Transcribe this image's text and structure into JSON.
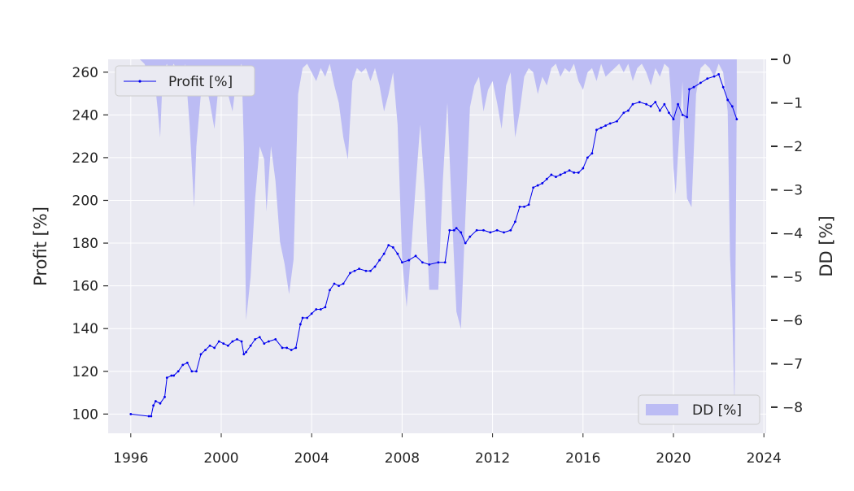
{
  "chart_data": {
    "type": "line",
    "title": "",
    "xlabel": "",
    "ylabel": "Profit [%]",
    "y2label": "DD [%]",
    "xlim": [
      1995.0,
      2024.1
    ],
    "ylim": [
      91,
      266
    ],
    "y2lim": [
      -8.6,
      0
    ],
    "grid": true,
    "x_ticks": [
      1996,
      2000,
      2004,
      2008,
      2012,
      2016,
      2020,
      2024
    ],
    "x_tick_labels": [
      "1996",
      "2000",
      "2004",
      "2008",
      "2012",
      "2016",
      "2020",
      "2024"
    ],
    "y_ticks": [
      100,
      120,
      140,
      160,
      180,
      200,
      220,
      240,
      260
    ],
    "y_tick_labels": [
      "100",
      "120",
      "140",
      "160",
      "180",
      "200",
      "220",
      "240",
      "260"
    ],
    "y2_ticks": [
      0,
      -1,
      -2,
      -3,
      -4,
      -5,
      -6,
      -7,
      -8
    ],
    "y2_tick_labels": [
      "0",
      "−1",
      "−2",
      "−3",
      "−4",
      "−5",
      "−6",
      "−7",
      "−8"
    ],
    "legend_profit_position": "upper-left",
    "legend_dd_position": "lower-right",
    "series": [
      {
        "name": "Profit [%]",
        "axis": "left",
        "color": "#0000ee",
        "x": [
          1996.0,
          1996.8,
          1996.9,
          1997.0,
          1997.1,
          1997.3,
          1997.5,
          1997.6,
          1997.8,
          1997.9,
          1998.1,
          1998.3,
          1998.5,
          1998.7,
          1998.9,
          1999.1,
          1999.3,
          1999.5,
          1999.7,
          1999.9,
          2000.1,
          2000.3,
          2000.5,
          2000.7,
          2000.9,
          2001.0,
          2001.1,
          2001.3,
          2001.5,
          2001.7,
          2001.9,
          2002.1,
          2002.4,
          2002.7,
          2002.9,
          2003.1,
          2003.3,
          2003.5,
          2003.6,
          2003.8,
          2004.0,
          2004.2,
          2004.4,
          2004.6,
          2004.8,
          2005.0,
          2005.2,
          2005.4,
          2005.7,
          2005.9,
          2006.1,
          2006.4,
          2006.6,
          2006.8,
          2007.0,
          2007.2,
          2007.4,
          2007.6,
          2007.8,
          2008.0,
          2008.3,
          2008.6,
          2008.9,
          2009.2,
          2009.6,
          2009.9,
          2010.1,
          2010.3,
          2010.4,
          2010.6,
          2010.8,
          2011.0,
          2011.3,
          2011.6,
          2011.9,
          2012.2,
          2012.5,
          2012.8,
          2013.0,
          2013.2,
          2013.4,
          2013.6,
          2013.8,
          2014.0,
          2014.2,
          2014.4,
          2014.6,
          2014.8,
          2015.0,
          2015.2,
          2015.4,
          2015.6,
          2015.8,
          2016.0,
          2016.2,
          2016.4,
          2016.6,
          2016.8,
          2017.0,
          2017.2,
          2017.5,
          2017.8,
          2018.0,
          2018.2,
          2018.5,
          2018.8,
          2019.0,
          2019.2,
          2019.4,
          2019.6,
          2019.8,
          2020.0,
          2020.2,
          2020.4,
          2020.6,
          2020.7,
          2020.9,
          2021.2,
          2021.5,
          2021.8,
          2022.0,
          2022.2,
          2022.4,
          2022.6,
          2022.8
        ],
        "y": [
          100,
          99,
          99,
          104,
          106,
          105,
          108,
          117,
          118,
          118,
          120,
          123,
          124,
          120,
          120,
          128,
          130,
          132,
          131,
          134,
          133,
          132,
          134,
          135,
          134,
          128,
          129,
          132,
          135,
          136,
          133,
          134,
          135,
          131,
          131,
          130,
          131,
          142,
          145,
          145,
          147,
          149,
          149,
          150,
          158,
          161,
          160,
          161,
          166,
          167,
          168,
          167,
          167,
          169,
          172,
          175,
          179,
          178,
          175,
          171,
          172,
          174,
          171,
          170,
          171,
          171,
          186,
          186,
          187,
          185,
          180,
          183,
          186,
          186,
          185,
          186,
          185,
          186,
          190,
          197,
          197,
          198,
          206,
          207,
          208,
          210,
          212,
          211,
          212,
          213,
          214,
          213,
          213,
          215,
          220,
          222,
          233,
          234,
          235,
          236,
          237,
          241,
          242,
          245,
          246,
          245,
          244,
          246,
          242,
          245,
          241,
          238,
          245,
          240,
          239,
          252,
          253,
          255,
          257,
          258,
          259,
          253,
          247,
          244,
          238
        ]
      },
      {
        "name": "DD [%]",
        "axis": "right",
        "color": "#bcbcf4",
        "type": "area",
        "x": [
          1996.0,
          1996.4,
          1996.6,
          1996.8,
          1996.9,
          1997.0,
          1997.2,
          1997.3,
          1997.4,
          1997.5,
          1997.6,
          1997.7,
          1997.9,
          1998.0,
          1998.2,
          1998.4,
          1998.6,
          1998.8,
          1998.9,
          1999.1,
          1999.3,
          1999.5,
          1999.7,
          1999.9,
          2000.1,
          2000.3,
          2000.5,
          2000.7,
          2000.9,
          2001.0,
          2001.1,
          2001.3,
          2001.5,
          2001.7,
          2001.9,
          2002.0,
          2002.2,
          2002.4,
          2002.6,
          2002.8,
          2003.0,
          2003.2,
          2003.4,
          2003.6,
          2003.8,
          2004.0,
          2004.2,
          2004.4,
          2004.6,
          2004.8,
          2005.0,
          2005.2,
          2005.4,
          2005.6,
          2005.8,
          2006.0,
          2006.2,
          2006.4,
          2006.6,
          2006.8,
          2007.0,
          2007.2,
          2007.4,
          2007.6,
          2007.8,
          2008.0,
          2008.2,
          2008.4,
          2008.6,
          2008.8,
          2009.0,
          2009.2,
          2009.4,
          2009.6,
          2009.8,
          2010.0,
          2010.2,
          2010.4,
          2010.6,
          2010.8,
          2011.0,
          2011.2,
          2011.4,
          2011.6,
          2011.8,
          2012.0,
          2012.2,
          2012.4,
          2012.6,
          2012.8,
          2013.0,
          2013.2,
          2013.4,
          2013.6,
          2013.8,
          2014.0,
          2014.2,
          2014.4,
          2014.6,
          2014.8,
          2015.0,
          2015.2,
          2015.4,
          2015.6,
          2015.8,
          2016.0,
          2016.2,
          2016.4,
          2016.6,
          2016.8,
          2017.0,
          2017.2,
          2017.4,
          2017.6,
          2017.8,
          2018.0,
          2018.2,
          2018.4,
          2018.6,
          2018.8,
          2019.0,
          2019.2,
          2019.4,
          2019.6,
          2019.8,
          2019.9,
          2020.0,
          2020.1,
          2020.2,
          2020.3,
          2020.4,
          2020.5,
          2020.6,
          2020.8,
          2021.0,
          2021.2,
          2021.4,
          2021.6,
          2021.8,
          2022.0,
          2022.2,
          2022.4,
          2022.5,
          2022.6,
          2022.7,
          2022.8
        ],
        "y": [
          0,
          0,
          -0.1,
          -0.3,
          -0.8,
          -0.2,
          -1.2,
          -1.8,
          -0.5,
          -0.2,
          -0.1,
          -0.3,
          -0.1,
          -0.2,
          -0.6,
          -0.1,
          -1.5,
          -3.4,
          -2.0,
          -0.8,
          -0.5,
          -1.0,
          -1.6,
          -0.5,
          -0.2,
          -0.8,
          -1.2,
          -0.3,
          -0.1,
          -2.0,
          -6.0,
          -5.0,
          -3.2,
          -2.0,
          -2.3,
          -3.5,
          -2.0,
          -2.8,
          -4.2,
          -4.7,
          -5.4,
          -4.6,
          -0.8,
          -0.2,
          -0.1,
          -0.3,
          -0.5,
          -0.2,
          -0.4,
          -0.1,
          -0.6,
          -1.0,
          -1.8,
          -2.3,
          -0.5,
          -0.2,
          -0.3,
          -0.2,
          -0.5,
          -0.2,
          -0.6,
          -1.2,
          -0.8,
          -0.3,
          -1.5,
          -4.6,
          -5.7,
          -4.4,
          -2.9,
          -1.5,
          -3.0,
          -5.3,
          -5.3,
          -5.3,
          -2.8,
          -1.0,
          -3.5,
          -5.8,
          -6.2,
          -3.6,
          -1.1,
          -0.6,
          -0.4,
          -1.2,
          -0.7,
          -0.5,
          -1.0,
          -1.6,
          -0.6,
          -0.3,
          -1.8,
          -1.2,
          -0.4,
          -0.2,
          -0.3,
          -0.8,
          -0.4,
          -0.6,
          -0.2,
          -0.1,
          -0.4,
          -0.2,
          -0.3,
          -0.1,
          -0.5,
          -0.7,
          -0.3,
          -0.2,
          -0.5,
          -0.1,
          -0.4,
          -0.3,
          -0.2,
          -0.1,
          -0.3,
          -0.1,
          -0.5,
          -0.2,
          -0.1,
          -0.3,
          -0.6,
          -0.2,
          -0.4,
          -0.1,
          -0.2,
          -0.9,
          -2.5,
          -3.1,
          -2.2,
          -1.4,
          -0.5,
          -2.1,
          -3.2,
          -3.4,
          -0.8,
          -0.2,
          -0.1,
          -0.2,
          -0.4,
          -0.1,
          -0.3,
          -1.2,
          -4.5,
          -5.8,
          -8.0,
          -1.0
        ]
      }
    ]
  }
}
